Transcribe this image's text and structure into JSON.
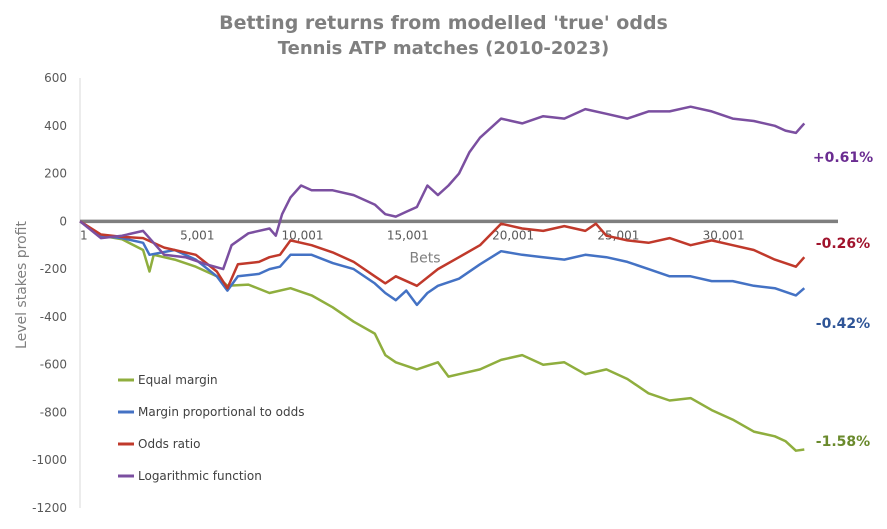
{
  "chart_data": {
    "type": "line",
    "title": "Betting returns from modelled 'true' odds",
    "subtitle": "Tennis ATP matches (2010-2023)",
    "xlabel": "Bets",
    "ylabel": "Level stakes profit",
    "xlim": [
      1,
      36000
    ],
    "ylim": [
      -1200,
      600
    ],
    "x_ticks": [
      {
        "value": 1,
        "label": "1"
      },
      {
        "value": 5001,
        "label": "5,001"
      },
      {
        "value": 10001,
        "label": "10,001"
      },
      {
        "value": 15001,
        "label": "15,001"
      },
      {
        "value": 20001,
        "label": "20,001"
      },
      {
        "value": 25001,
        "label": "25,001"
      },
      {
        "value": 30001,
        "label": "30,001"
      }
    ],
    "y_ticks": [
      {
        "value": 600,
        "label": "600"
      },
      {
        "value": 400,
        "label": "400"
      },
      {
        "value": 200,
        "label": "200"
      },
      {
        "value": 0,
        "label": "0"
      },
      {
        "value": -200,
        "label": "-200"
      },
      {
        "value": -400,
        "label": "-400"
      },
      {
        "value": -600,
        "label": "-600"
      },
      {
        "value": -800,
        "label": "-800"
      },
      {
        "value": -1000,
        "label": "-1000"
      },
      {
        "value": -1200,
        "label": "-1200"
      }
    ],
    "grid": false,
    "legend_position": "bottom-left",
    "series": [
      {
        "name": "Equal margin",
        "color": "#8fae3e",
        "end_label": "-1.58%",
        "end_label_color": "#6a8a2c",
        "points": [
          [
            1,
            0
          ],
          [
            1000,
            -60
          ],
          [
            2000,
            -75
          ],
          [
            3000,
            -120
          ],
          [
            3300,
            -210
          ],
          [
            3500,
            -140
          ],
          [
            4500,
            -160
          ],
          [
            5500,
            -190
          ],
          [
            6500,
            -230
          ],
          [
            7000,
            -270
          ],
          [
            8000,
            -265
          ],
          [
            9000,
            -300
          ],
          [
            10000,
            -280
          ],
          [
            11000,
            -310
          ],
          [
            12000,
            -360
          ],
          [
            13000,
            -420
          ],
          [
            14000,
            -470
          ],
          [
            14500,
            -560
          ],
          [
            15000,
            -590
          ],
          [
            16000,
            -620
          ],
          [
            17000,
            -590
          ],
          [
            17500,
            -650
          ],
          [
            18000,
            -640
          ],
          [
            19000,
            -620
          ],
          [
            20000,
            -580
          ],
          [
            21000,
            -560
          ],
          [
            22000,
            -600
          ],
          [
            23000,
            -590
          ],
          [
            24000,
            -640
          ],
          [
            25000,
            -620
          ],
          [
            26000,
            -660
          ],
          [
            27000,
            -720
          ],
          [
            28000,
            -750
          ],
          [
            29000,
            -740
          ],
          [
            30000,
            -790
          ],
          [
            31000,
            -830
          ],
          [
            32000,
            -880
          ],
          [
            33000,
            -900
          ],
          [
            33500,
            -920
          ],
          [
            34000,
            -960
          ],
          [
            34400,
            -955
          ]
        ]
      },
      {
        "name": "Margin proportional to odds",
        "color": "#4472c4",
        "end_label": "-0.42%",
        "end_label_color": "#2f5597",
        "points": [
          [
            1,
            0
          ],
          [
            1000,
            -60
          ],
          [
            2000,
            -70
          ],
          [
            3000,
            -90
          ],
          [
            3300,
            -140
          ],
          [
            4500,
            -120
          ],
          [
            5500,
            -160
          ],
          [
            6500,
            -230
          ],
          [
            7000,
            -290
          ],
          [
            7500,
            -230
          ],
          [
            8500,
            -220
          ],
          [
            9000,
            -200
          ],
          [
            9500,
            -190
          ],
          [
            10000,
            -140
          ],
          [
            11000,
            -140
          ],
          [
            12000,
            -175
          ],
          [
            13000,
            -200
          ],
          [
            14000,
            -260
          ],
          [
            14500,
            -300
          ],
          [
            15000,
            -330
          ],
          [
            15500,
            -290
          ],
          [
            16000,
            -350
          ],
          [
            16500,
            -300
          ],
          [
            17000,
            -270
          ],
          [
            18000,
            -240
          ],
          [
            19000,
            -180
          ],
          [
            20000,
            -125
          ],
          [
            21000,
            -140
          ],
          [
            22000,
            -150
          ],
          [
            23000,
            -160
          ],
          [
            24000,
            -140
          ],
          [
            25000,
            -150
          ],
          [
            26000,
            -170
          ],
          [
            27000,
            -200
          ],
          [
            28000,
            -230
          ],
          [
            29000,
            -230
          ],
          [
            30000,
            -250
          ],
          [
            31000,
            -250
          ],
          [
            32000,
            -270
          ],
          [
            33000,
            -280
          ],
          [
            34000,
            -310
          ],
          [
            34400,
            -280
          ]
        ]
      },
      {
        "name": "Odds ratio",
        "color": "#c0392b",
        "end_label": "-0.26%",
        "end_label_color": "#a0132c",
        "points": [
          [
            1,
            0
          ],
          [
            1000,
            -55
          ],
          [
            2000,
            -65
          ],
          [
            3000,
            -70
          ],
          [
            4000,
            -110
          ],
          [
            5500,
            -140
          ],
          [
            6500,
            -210
          ],
          [
            7000,
            -280
          ],
          [
            7500,
            -180
          ],
          [
            8500,
            -170
          ],
          [
            9000,
            -150
          ],
          [
            9500,
            -140
          ],
          [
            10000,
            -80
          ],
          [
            11000,
            -100
          ],
          [
            12000,
            -130
          ],
          [
            13000,
            -170
          ],
          [
            14000,
            -230
          ],
          [
            14500,
            -260
          ],
          [
            15000,
            -230
          ],
          [
            16000,
            -270
          ],
          [
            17000,
            -200
          ],
          [
            18000,
            -150
          ],
          [
            19000,
            -100
          ],
          [
            20000,
            -10
          ],
          [
            21000,
            -30
          ],
          [
            22000,
            -40
          ],
          [
            23000,
            -20
          ],
          [
            24000,
            -40
          ],
          [
            24500,
            -10
          ],
          [
            25000,
            -60
          ],
          [
            26000,
            -80
          ],
          [
            27000,
            -90
          ],
          [
            28000,
            -70
          ],
          [
            29000,
            -100
          ],
          [
            30000,
            -80
          ],
          [
            31000,
            -100
          ],
          [
            32000,
            -120
          ],
          [
            33000,
            -160
          ],
          [
            34000,
            -190
          ],
          [
            34400,
            -150
          ]
        ]
      },
      {
        "name": "Logarithmic function",
        "color": "#7b4fa0",
        "end_label": "+0.61%",
        "end_label_color": "#6a2c91",
        "points": [
          [
            1,
            0
          ],
          [
            1000,
            -70
          ],
          [
            2000,
            -60
          ],
          [
            3000,
            -40
          ],
          [
            4000,
            -140
          ],
          [
            5000,
            -150
          ],
          [
            6000,
            -180
          ],
          [
            6800,
            -200
          ],
          [
            7200,
            -100
          ],
          [
            8000,
            -50
          ],
          [
            9000,
            -30
          ],
          [
            9300,
            -60
          ],
          [
            9600,
            30
          ],
          [
            10000,
            100
          ],
          [
            10500,
            150
          ],
          [
            11000,
            130
          ],
          [
            12000,
            130
          ],
          [
            13000,
            110
          ],
          [
            14000,
            70
          ],
          [
            14500,
            30
          ],
          [
            15000,
            20
          ],
          [
            15500,
            40
          ],
          [
            16000,
            60
          ],
          [
            16500,
            150
          ],
          [
            17000,
            110
          ],
          [
            17500,
            150
          ],
          [
            18000,
            200
          ],
          [
            18500,
            290
          ],
          [
            19000,
            350
          ],
          [
            20000,
            430
          ],
          [
            21000,
            410
          ],
          [
            22000,
            440
          ],
          [
            23000,
            430
          ],
          [
            24000,
            470
          ],
          [
            25000,
            450
          ],
          [
            26000,
            430
          ],
          [
            27000,
            460
          ],
          [
            28000,
            460
          ],
          [
            29000,
            480
          ],
          [
            30000,
            460
          ],
          [
            31000,
            430
          ],
          [
            32000,
            420
          ],
          [
            33000,
            400
          ],
          [
            33500,
            380
          ],
          [
            34000,
            370
          ],
          [
            34400,
            410
          ]
        ]
      }
    ]
  }
}
